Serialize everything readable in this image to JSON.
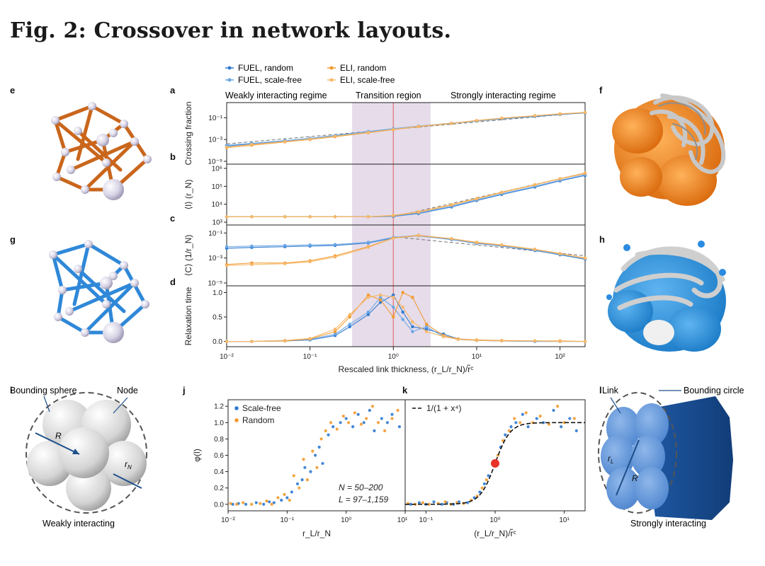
{
  "title": "Fig. 2: Crossover in network layouts.",
  "colors": {
    "blue": "#2f7ad0",
    "orange": "#f29a2e",
    "band": "#e6dcea",
    "redline": "#e07a7a",
    "dark": "#222222"
  },
  "legend": {
    "items": [
      {
        "label": "FUEL, random",
        "color": "#2f7ad0"
      },
      {
        "label": "FUEL, scale-free",
        "color": "#6aa7e6"
      },
      {
        "label": "ELI, random",
        "color": "#f29a2e"
      },
      {
        "label": "ELI, scale-free",
        "color": "#f6b869"
      }
    ]
  },
  "panel_letters": {
    "a": "a",
    "b": "b",
    "c": "c",
    "d": "d",
    "e": "e",
    "f": "f",
    "g": "g",
    "h": "h",
    "i": "i",
    "j": "j",
    "k": "k",
    "l": "l"
  },
  "regimes": {
    "weak": "Weakly interacting regime",
    "transition": "Transition region",
    "strong": "Strongly interacting regime"
  },
  "schematics": {
    "i": {
      "bounding": "Bounding sphere",
      "node": "Node",
      "R": "R",
      "rN": "r",
      "rN_sub": "N",
      "caption": "Weakly interacting"
    },
    "l": {
      "link": "Link",
      "bounding": "Bounding circle",
      "rL": "r",
      "rL_sub": "L",
      "R": "R",
      "caption": "Strongly interacting"
    }
  },
  "chart_data": [
    {
      "id": "a",
      "type": "line",
      "ylabel": "Crossing fraction",
      "xscale": "log",
      "xlim": [
        0.01,
        200
      ],
      "yscale": "log",
      "ylim": [
        1e-05,
        1
      ],
      "yticks": [
        "10⁻⁵",
        "10⁻³",
        "10⁻¹"
      ],
      "x": [
        0.01,
        0.02,
        0.05,
        0.1,
        0.2,
        0.5,
        1,
        2,
        5,
        10,
        20,
        50,
        100,
        200
      ],
      "series": [
        {
          "name": "FUEL, random",
          "values": [
            0.00025,
            0.0004,
            0.0007,
            0.0012,
            0.0022,
            0.005,
            0.009,
            0.016,
            0.03,
            0.05,
            0.08,
            0.13,
            0.2,
            0.28
          ]
        },
        {
          "name": "FUEL, scale-free",
          "values": [
            0.0003,
            0.00045,
            0.0008,
            0.0013,
            0.0024,
            0.0055,
            0.01,
            0.017,
            0.032,
            0.052,
            0.085,
            0.14,
            0.21,
            0.3
          ]
        },
        {
          "name": "ELI, random",
          "values": [
            0.00018,
            0.0003,
            0.0006,
            0.001,
            0.0018,
            0.0042,
            0.008,
            0.015,
            0.03,
            0.055,
            0.09,
            0.15,
            0.22,
            0.3
          ]
        },
        {
          "name": "ELI, scale-free",
          "values": [
            0.0002,
            0.00035,
            0.00065,
            0.0011,
            0.002,
            0.0045,
            0.0085,
            0.016,
            0.031,
            0.056,
            0.092,
            0.155,
            0.23,
            0.31
          ]
        }
      ],
      "guide": {
        "style": "dashed",
        "x": [
          0.01,
          200
        ],
        "values": [
          0.0004,
          0.3
        ]
      }
    },
    {
      "id": "b",
      "type": "line",
      "ylabel": "⟨l⟩ (r_N)",
      "xscale": "log",
      "xlim": [
        0.01,
        200
      ],
      "yscale": "log",
      "ylim": [
        1000,
        1000000
      ],
      "yticks": [
        "10³",
        "10⁴",
        "10⁵",
        "10⁶"
      ],
      "x": [
        0.01,
        0.02,
        0.05,
        0.1,
        0.2,
        0.5,
        1,
        2,
        5,
        10,
        20,
        50,
        100,
        200
      ],
      "series": [
        {
          "name": "FUEL, random",
          "values": [
            2000,
            2000,
            2000,
            2000,
            2000,
            2000,
            2100,
            3000,
            7000,
            16000,
            35000,
            90000,
            200000,
            400000
          ]
        },
        {
          "name": "FUEL, scale-free",
          "values": [
            2000,
            2000,
            2000,
            2000,
            2000,
            2000,
            2200,
            3200,
            7800,
            17500,
            38000,
            100000,
            220000,
            450000
          ]
        },
        {
          "name": "ELI, random",
          "values": [
            2000,
            2000,
            2000,
            2000,
            2000,
            2000,
            2300,
            3600,
            9000,
            20000,
            45000,
            120000,
            260000,
            520000
          ]
        },
        {
          "name": "ELI, scale-free",
          "values": [
            2000,
            2000,
            2000,
            2000,
            2000,
            2000,
            2400,
            3800,
            9600,
            21000,
            47000,
            125000,
            270000,
            560000
          ]
        }
      ],
      "guide": {
        "style": "dashed",
        "x": [
          1,
          200
        ],
        "values": [
          2000,
          560000
        ]
      }
    },
    {
      "id": "c",
      "type": "line",
      "ylabel": "⟨C⟩ (1/r_N)",
      "xscale": "log",
      "xlim": [
        0.01,
        200
      ],
      "yscale": "log",
      "ylim": [
        1e-05,
        0.2
      ],
      "yticks": [
        "10⁻⁵",
        "10⁻³",
        "10⁻¹"
      ],
      "x": [
        0.01,
        0.02,
        0.05,
        0.1,
        0.2,
        0.5,
        1,
        2,
        5,
        10,
        20,
        50,
        100,
        200
      ],
      "series": [
        {
          "name": "FUEL, random",
          "values": [
            0.006,
            0.007,
            0.008,
            0.009,
            0.01,
            0.016,
            0.04,
            0.06,
            0.03,
            0.015,
            0.009,
            0.004,
            0.0018,
            0.0008
          ]
        },
        {
          "name": "FUEL, scale-free",
          "values": [
            0.008,
            0.009,
            0.01,
            0.011,
            0.012,
            0.018,
            0.045,
            0.065,
            0.033,
            0.017,
            0.01,
            0.0045,
            0.002,
            0.0009
          ]
        },
        {
          "name": "ELI, random",
          "values": [
            0.0003,
            0.0004,
            0.0004,
            0.0006,
            0.0015,
            0.008,
            0.04,
            0.065,
            0.035,
            0.018,
            0.011,
            0.005,
            0.0023,
            0.001
          ]
        },
        {
          "name": "ELI, scale-free",
          "values": [
            0.00025,
            0.0003,
            0.00035,
            0.0005,
            0.0012,
            0.007,
            0.038,
            0.062,
            0.034,
            0.017,
            0.0105,
            0.0048,
            0.0022,
            0.00095
          ]
        }
      ],
      "guide": {
        "style": "dashed",
        "x": [
          1,
          200
        ],
        "values": [
          0.05,
          0.0015
        ]
      }
    },
    {
      "id": "d",
      "type": "line",
      "ylabel": "Relaxation time",
      "xscale": "log",
      "xlim": [
        0.01,
        200
      ],
      "yscale": "linear",
      "ylim": [
        -0.05,
        1.05
      ],
      "yticks": [
        "0.0",
        "0.5",
        "1.0"
      ],
      "ytick_values": [
        0,
        0.5,
        1
      ],
      "xticks": [
        "10⁻²",
        "10⁻¹",
        "10⁰",
        "10¹",
        "10²"
      ],
      "xlabel": "Rescaled link thickness, (r_L/r_N)/r̃ᶜ",
      "x": [
        0.01,
        0.02,
        0.05,
        0.1,
        0.2,
        0.3,
        0.5,
        0.7,
        1,
        1.3,
        1.7,
        2.5,
        4,
        6,
        10,
        20,
        50,
        100,
        200
      ],
      "series": [
        {
          "name": "FUEL, random",
          "values": [
            0,
            0,
            0.01,
            0.03,
            0.12,
            0.3,
            0.55,
            0.8,
            0.95,
            0.6,
            0.3,
            0.25,
            0.15,
            0.05,
            0.02,
            0.01,
            0,
            0,
            0
          ]
        },
        {
          "name": "FUEL, scale-free",
          "values": [
            0,
            0,
            0.02,
            0.04,
            0.15,
            0.35,
            0.6,
            0.9,
            0.7,
            0.45,
            0.2,
            0.3,
            0.1,
            0.04,
            0.02,
            0.01,
            0,
            0,
            0
          ]
        },
        {
          "name": "ELI, random",
          "values": [
            0,
            0,
            0.01,
            0.05,
            0.2,
            0.5,
            0.95,
            0.85,
            0.5,
            1.0,
            0.9,
            0.35,
            0.12,
            0.05,
            0.03,
            0.02,
            0.01,
            0.01,
            0
          ]
        },
        {
          "name": "ELI, scale-free",
          "values": [
            0,
            0,
            0.02,
            0.06,
            0.25,
            0.55,
            0.9,
            0.95,
            0.9,
            0.7,
            0.4,
            0.2,
            0.1,
            0.04,
            0.02,
            0.01,
            0.01,
            0,
            0
          ]
        }
      ],
      "band": [
        0.32,
        2.8
      ],
      "vline": 1
    },
    {
      "id": "j",
      "type": "scatter",
      "ylabel": "φ(l)",
      "xlabel": "r_L/r_N",
      "xscale": "log",
      "xlim": [
        0.01,
        10
      ],
      "yscale": "linear",
      "ylim": [
        -0.08,
        1.28
      ],
      "yticks": [
        "0.0",
        "0.2",
        "0.4",
        "0.6",
        "0.8",
        "1.0",
        "1.2"
      ],
      "ytick_values": [
        0,
        0.2,
        0.4,
        0.6,
        0.8,
        1.0,
        1.2
      ],
      "xticks": [
        "10⁻²",
        "10⁻¹",
        "10⁰",
        "10¹"
      ],
      "legend": [
        "Scale-free",
        "Random"
      ],
      "annotations": [
        "N = 50–200",
        "L = 97–1,159"
      ],
      "series": [
        {
          "name": "Scale-free",
          "points": [
            [
              0.012,
              0.0
            ],
            [
              0.015,
              0.01
            ],
            [
              0.02,
              0.0
            ],
            [
              0.03,
              0.02
            ],
            [
              0.04,
              0.0
            ],
            [
              0.05,
              0.03
            ],
            [
              0.06,
              0.02
            ],
            [
              0.08,
              0.05
            ],
            [
              0.1,
              0.08
            ],
            [
              0.12,
              0.15
            ],
            [
              0.15,
              0.25
            ],
            [
              0.18,
              0.3
            ],
            [
              0.2,
              0.45
            ],
            [
              0.25,
              0.4
            ],
            [
              0.3,
              0.6
            ],
            [
              0.35,
              0.7
            ],
            [
              0.4,
              0.5
            ],
            [
              0.5,
              0.85
            ],
            [
              0.6,
              0.95
            ],
            [
              0.8,
              1.0
            ],
            [
              1.0,
              1.05
            ],
            [
              1.3,
              0.95
            ],
            [
              1.6,
              1.1
            ],
            [
              2.0,
              1.0
            ],
            [
              2.5,
              1.15
            ],
            [
              3.0,
              0.9
            ],
            [
              4.0,
              1.05
            ],
            [
              5.0,
              1.0
            ],
            [
              6.0,
              1.1
            ],
            [
              8.0,
              0.95
            ]
          ]
        },
        {
          "name": "Random",
          "points": [
            [
              0.011,
              0.01
            ],
            [
              0.014,
              0.0
            ],
            [
              0.018,
              0.02
            ],
            [
              0.025,
              0.0
            ],
            [
              0.035,
              0.01
            ],
            [
              0.045,
              0.04
            ],
            [
              0.055,
              0.0
            ],
            [
              0.07,
              0.08
            ],
            [
              0.09,
              0.12
            ],
            [
              0.11,
              0.05
            ],
            [
              0.13,
              0.35
            ],
            [
              0.16,
              0.2
            ],
            [
              0.19,
              0.55
            ],
            [
              0.22,
              0.3
            ],
            [
              0.27,
              0.65
            ],
            [
              0.32,
              0.45
            ],
            [
              0.38,
              0.8
            ],
            [
              0.45,
              0.9
            ],
            [
              0.55,
              1.0
            ],
            [
              0.7,
              0.92
            ],
            [
              0.9,
              1.08
            ],
            [
              1.1,
              1.0
            ],
            [
              1.4,
              1.12
            ],
            [
              1.8,
              0.98
            ],
            [
              2.2,
              1.05
            ],
            [
              2.8,
              1.2
            ],
            [
              3.5,
              1.0
            ],
            [
              4.5,
              0.9
            ],
            [
              6.0,
              1.05
            ],
            [
              7.5,
              1.15
            ]
          ]
        }
      ]
    },
    {
      "id": "k",
      "type": "scatter",
      "xlabel": "(r_L/r_N)/r̃ᶜ",
      "xscale": "log",
      "xlim": [
        0.05,
        20
      ],
      "yscale": "linear",
      "ylim": [
        -0.08,
        1.28
      ],
      "xticks": [
        "10⁻¹",
        "10⁰",
        "10¹"
      ],
      "fit": {
        "label": "1/(1 + x⁴)",
        "style": "dashed"
      },
      "highlight": {
        "x": 1,
        "y": 0.5
      },
      "series": [
        {
          "name": "Scale-free",
          "points": [
            [
              0.06,
              0.0
            ],
            [
              0.08,
              0.02
            ],
            [
              0.1,
              0.0
            ],
            [
              0.13,
              0.03
            ],
            [
              0.17,
              0.0
            ],
            [
              0.2,
              0.02
            ],
            [
              0.25,
              0.0
            ],
            [
              0.3,
              0.03
            ],
            [
              0.4,
              0.02
            ],
            [
              0.5,
              0.08
            ],
            [
              0.6,
              0.15
            ],
            [
              0.7,
              0.25
            ],
            [
              0.8,
              0.35
            ],
            [
              1.2,
              0.7
            ],
            [
              1.4,
              0.85
            ],
            [
              1.7,
              0.95
            ],
            [
              2.0,
              1.0
            ],
            [
              2.5,
              1.1
            ],
            [
              3.0,
              0.95
            ],
            [
              4.0,
              1.05
            ],
            [
              5.0,
              1.0
            ],
            [
              7.0,
              1.15
            ],
            [
              9.0,
              0.95
            ],
            [
              12.0,
              1.05
            ],
            [
              15.0,
              0.9
            ]
          ]
        },
        {
          "name": "Random",
          "points": [
            [
              0.055,
              0.01
            ],
            [
              0.07,
              0.0
            ],
            [
              0.09,
              0.02
            ],
            [
              0.11,
              0.0
            ],
            [
              0.15,
              0.01
            ],
            [
              0.19,
              0.03
            ],
            [
              0.23,
              0.0
            ],
            [
              0.28,
              0.02
            ],
            [
              0.35,
              0.01
            ],
            [
              0.45,
              0.05
            ],
            [
              0.55,
              0.1
            ],
            [
              0.65,
              0.2
            ],
            [
              0.75,
              0.3
            ],
            [
              1.1,
              0.6
            ],
            [
              1.3,
              0.78
            ],
            [
              1.6,
              0.9
            ],
            [
              1.9,
              1.05
            ],
            [
              2.3,
              1.0
            ],
            [
              2.8,
              1.12
            ],
            [
              3.5,
              1.0
            ],
            [
              4.5,
              1.08
            ],
            [
              6.0,
              0.98
            ],
            [
              8.0,
              1.2
            ],
            [
              10.0,
              1.0
            ],
            [
              14.0,
              1.05
            ]
          ]
        }
      ]
    }
  ]
}
